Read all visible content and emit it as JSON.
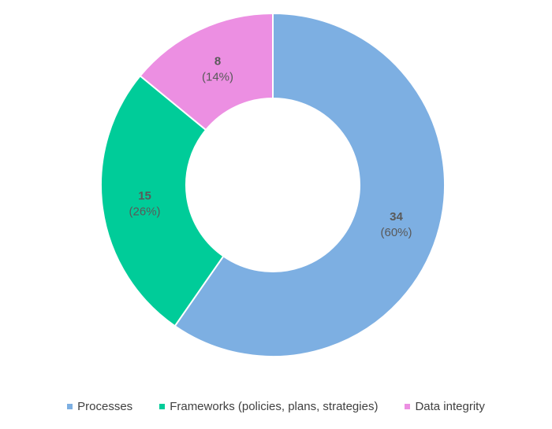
{
  "chart_data": {
    "type": "pie",
    "variant": "donut",
    "categories": [
      "Processes",
      "Frameworks (policies, plans, strategies)",
      "Data integrity"
    ],
    "values": [
      34,
      15,
      8
    ],
    "percent_labels": [
      "(60%)",
      "(26%)",
      "(14%)"
    ],
    "value_labels": [
      "34",
      "15",
      "8"
    ],
    "colors": [
      "#7DAFE2",
      "#00CC99",
      "#EC8FE2"
    ],
    "legend": "bottom"
  }
}
